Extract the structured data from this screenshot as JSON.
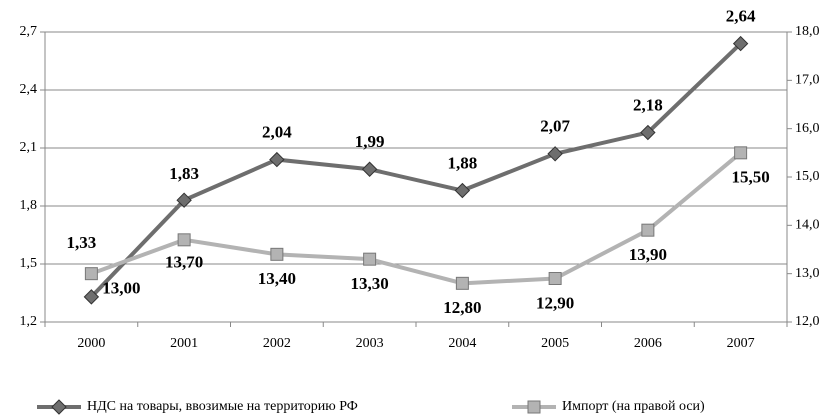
{
  "chart_data": {
    "type": "line",
    "categories": [
      "2000",
      "2001",
      "2002",
      "2003",
      "2004",
      "2005",
      "2006",
      "2007"
    ],
    "series": [
      {
        "name": "НДС на товары, ввозимые на территорию РФ",
        "color": "#6e6e6e",
        "marker": "diamond",
        "values": [
          1.33,
          1.83,
          2.04,
          1.99,
          1.88,
          2.07,
          2.18,
          2.64
        ],
        "value_labels": [
          "1,33",
          "1,83",
          "2,04",
          "1,99",
          "1,88",
          "2,07",
          "2,18",
          "2,64"
        ]
      },
      {
        "name": "Импорт (на правой оси)",
        "color": "#b3b3b3",
        "marker": "square",
        "axis": "y2",
        "values": [
          13.0,
          13.7,
          13.4,
          13.3,
          12.8,
          12.9,
          13.9,
          15.5
        ],
        "value_labels": [
          "13,00",
          "13,70",
          "13,40",
          "13,30",
          "12,80",
          "12,90",
          "13,90",
          "15,50"
        ]
      }
    ],
    "ylim": [
      1.2,
      2.7
    ],
    "yticks": [
      {
        "value": 1.2,
        "label": "1,2"
      },
      {
        "value": 1.5,
        "label": "1,5"
      },
      {
        "value": 1.8,
        "label": "1,8"
      },
      {
        "value": 2.1,
        "label": "2,1"
      },
      {
        "value": 2.4,
        "label": "2,4"
      },
      {
        "value": 2.7,
        "label": "2,7"
      }
    ],
    "y2lim": [
      12,
      18
    ],
    "y2ticks": [
      {
        "value": 12,
        "label": "12,0"
      },
      {
        "value": 13,
        "label": "13,0"
      },
      {
        "value": 14,
        "label": "14,0"
      },
      {
        "value": 15,
        "label": "15,0"
      },
      {
        "value": 16,
        "label": "16,0"
      },
      {
        "value": 17,
        "label": "17,0"
      },
      {
        "value": 18,
        "label": "18,0"
      }
    ],
    "grid": true,
    "legend": "bottom"
  }
}
